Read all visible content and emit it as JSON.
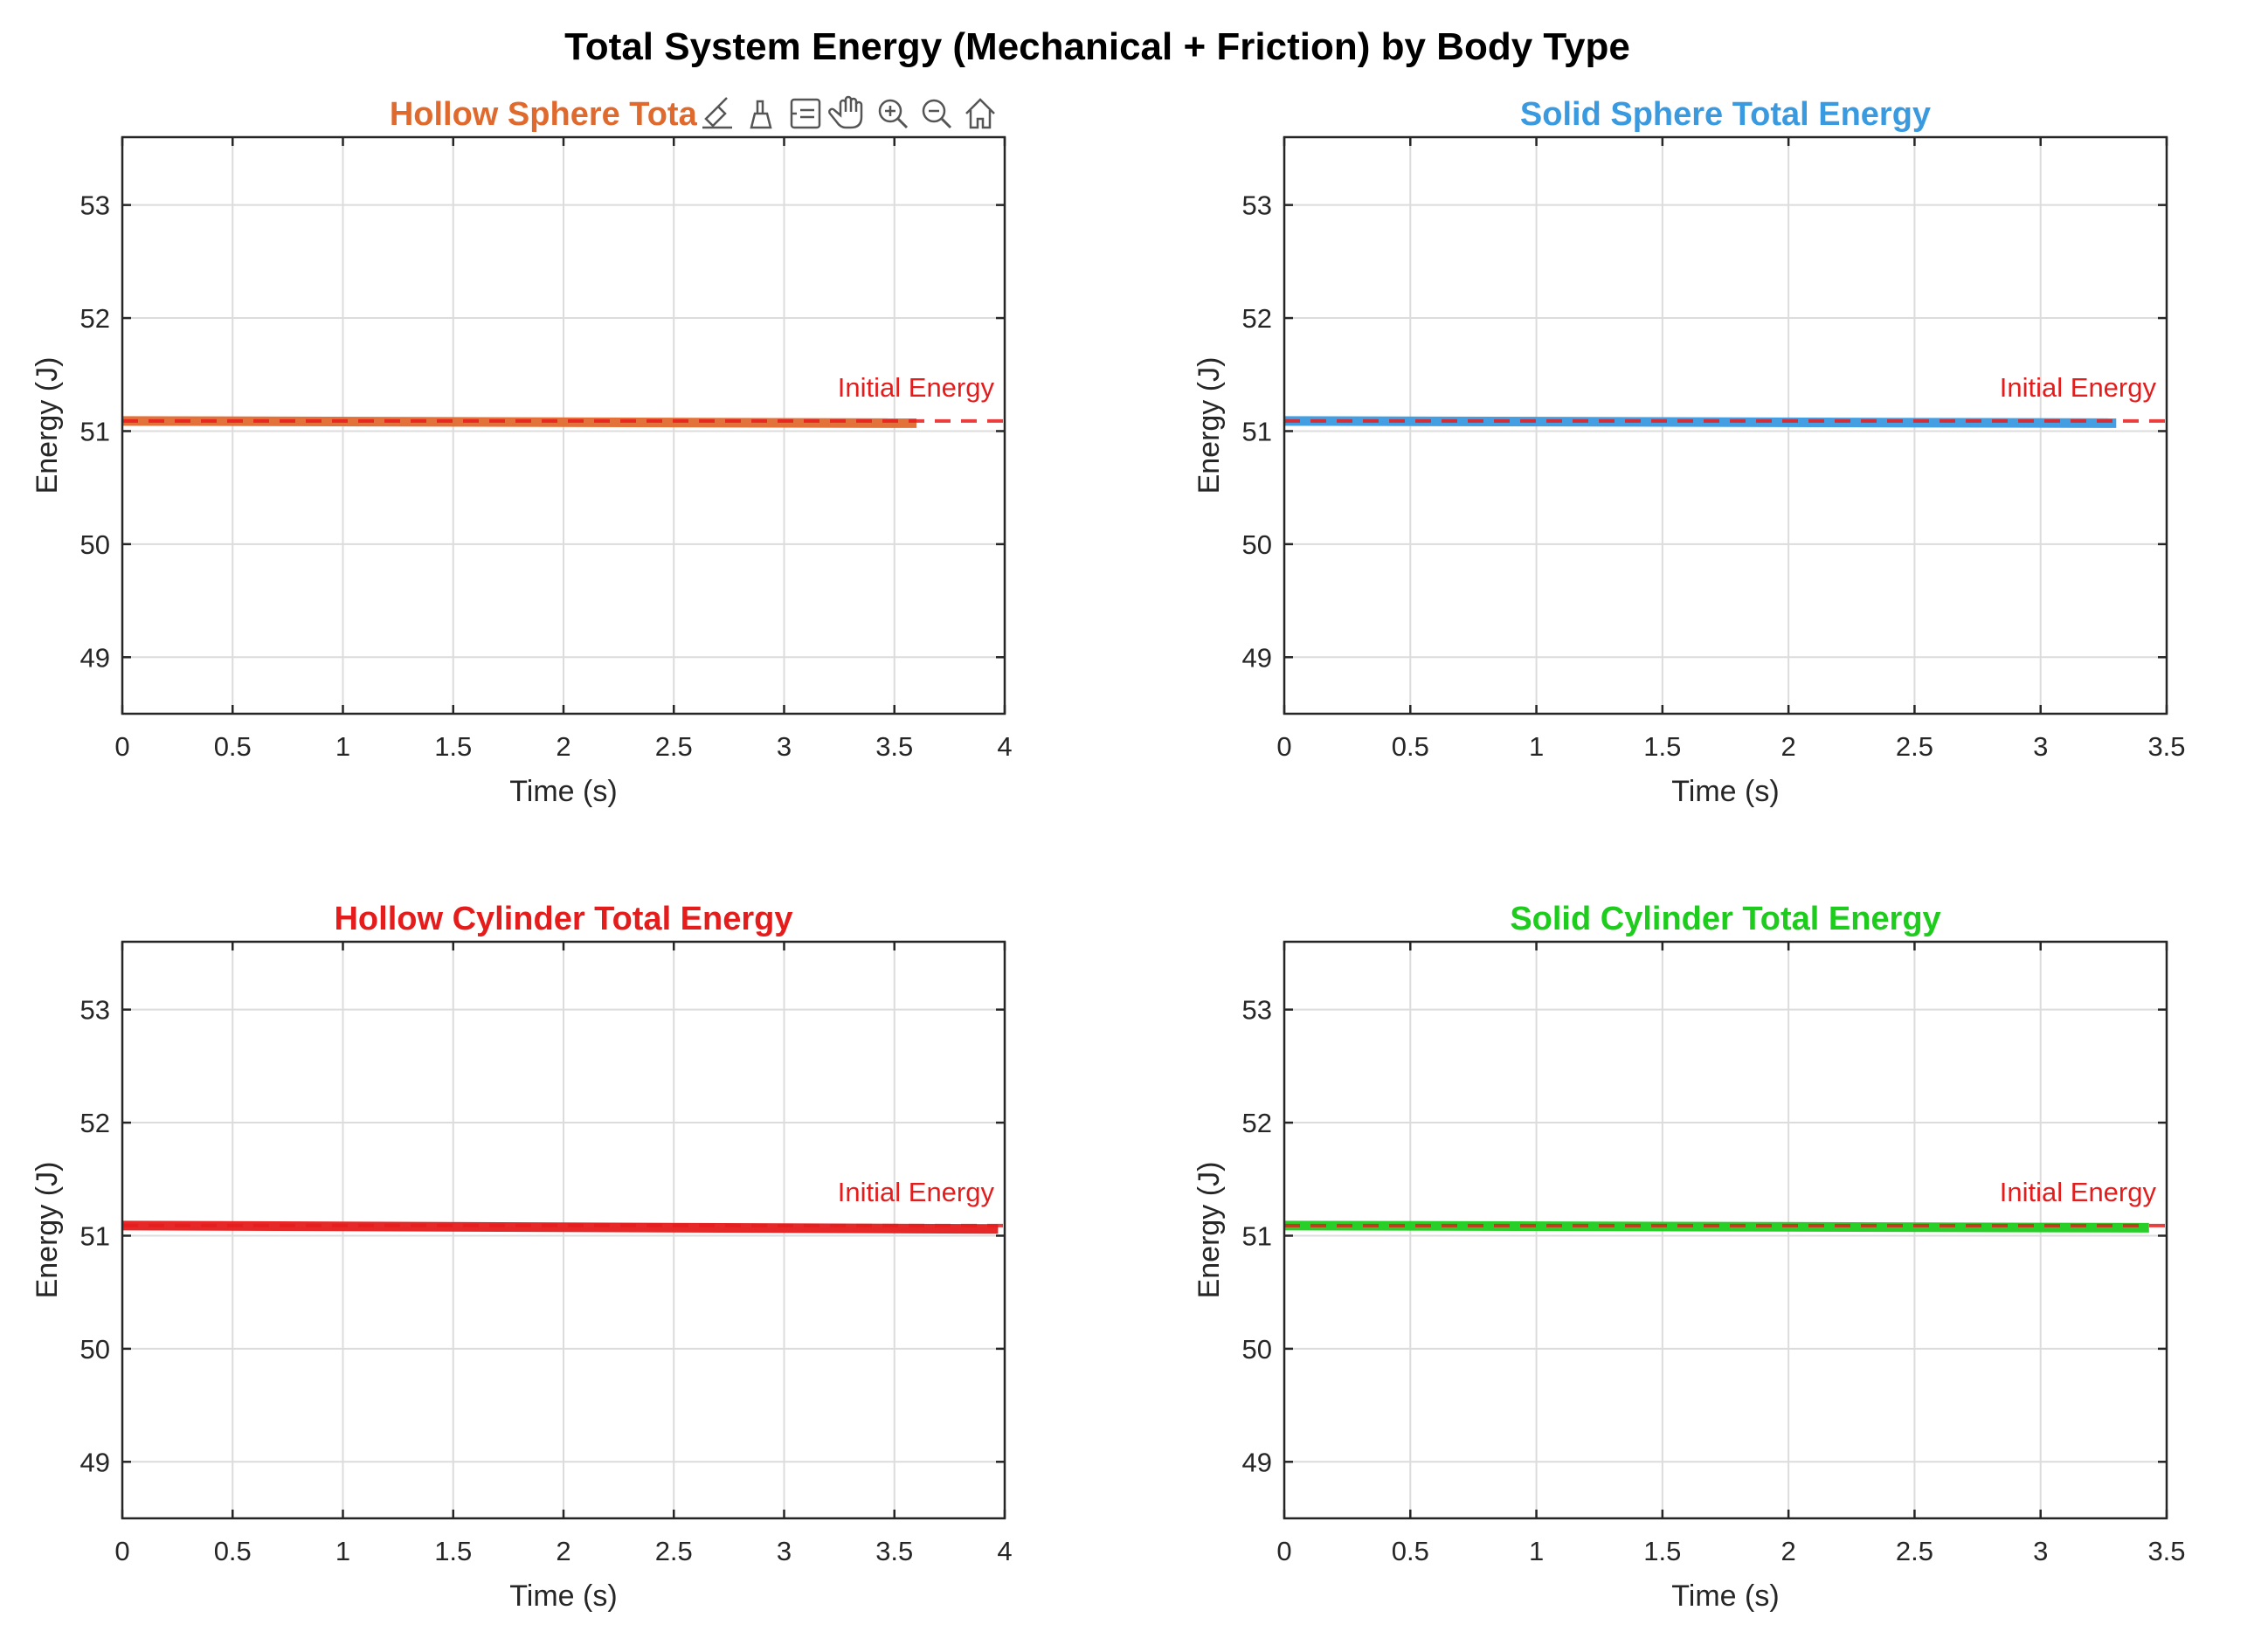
{
  "figure_title": "Total System Energy (Mechanical + Friction) by Body Type",
  "toolbar": {
    "icons": [
      "brush-icon",
      "data-tips-icon",
      "legend-icon",
      "pan-hand-icon",
      "zoom-in-icon",
      "zoom-out-icon",
      "home-icon"
    ]
  },
  "colors": {
    "hollow_sphere": "#e06a2e",
    "solid_sphere": "#3a9ae0",
    "hollow_cylinder": "#e51c1c",
    "solid_cylinder": "#1ecc1e",
    "reference": "#e51c1c"
  },
  "chart_data": [
    {
      "type": "line",
      "title": "Hollow Sphere Total E",
      "title_color": "#e06a2e",
      "xlabel": "Time (s)",
      "ylabel": "Energy (J)",
      "xlim": [
        0,
        4
      ],
      "ylim": [
        48.5,
        53.6
      ],
      "xticks": [
        0,
        0.5,
        1,
        1.5,
        2,
        2.5,
        3,
        3.5,
        4
      ],
      "xtick_labels": [
        "0",
        "0.5",
        "1",
        "1.5",
        "2",
        "2.5",
        "3",
        "3.5",
        "4"
      ],
      "yticks": [
        49,
        50,
        51,
        52,
        53
      ],
      "ytick_labels": [
        "49",
        "50",
        "51",
        "52",
        "53"
      ],
      "grid": true,
      "series": [
        {
          "color": "#e06a2e",
          "x": [
            0,
            3.6
          ],
          "y": [
            51.09,
            51.07
          ]
        }
      ],
      "reference_line": {
        "y": 51.09,
        "color": "#e51c1c",
        "style": "dashed",
        "x_range": [
          0,
          4
        ]
      },
      "annotation": {
        "text": "Initial Energy",
        "color": "#e51c1c"
      }
    },
    {
      "type": "line",
      "title": "Solid Sphere Total Energy",
      "title_color": "#3a9ae0",
      "xlabel": "Time (s)",
      "ylabel": "Energy (J)",
      "xlim": [
        0,
        3.5
      ],
      "ylim": [
        48.5,
        53.6
      ],
      "xticks": [
        0,
        0.5,
        1,
        1.5,
        2,
        2.5,
        3,
        3.5
      ],
      "xtick_labels": [
        "0",
        "0.5",
        "1",
        "1.5",
        "2",
        "2.5",
        "3",
        "3.5"
      ],
      "yticks": [
        49,
        50,
        51,
        52,
        53
      ],
      "ytick_labels": [
        "49",
        "50",
        "51",
        "52",
        "53"
      ],
      "grid": true,
      "series": [
        {
          "color": "#3a9ae0",
          "x": [
            0,
            3.3
          ],
          "y": [
            51.09,
            51.07
          ]
        }
      ],
      "reference_line": {
        "y": 51.09,
        "color": "#e51c1c",
        "style": "dashed",
        "x_range": [
          0,
          3.5
        ]
      },
      "annotation": {
        "text": "Initial Energy",
        "color": "#e51c1c"
      }
    },
    {
      "type": "line",
      "title": "Hollow Cylinder Total Energy",
      "title_color": "#e51c1c",
      "xlabel": "Time (s)",
      "ylabel": "Energy (J)",
      "xlim": [
        0,
        4
      ],
      "ylim": [
        48.5,
        53.6
      ],
      "xticks": [
        0,
        0.5,
        1,
        1.5,
        2,
        2.5,
        3,
        3.5,
        4
      ],
      "xtick_labels": [
        "0",
        "0.5",
        "1",
        "1.5",
        "2",
        "2.5",
        "3",
        "3.5",
        "4"
      ],
      "yticks": [
        49,
        50,
        51,
        52,
        53
      ],
      "ytick_labels": [
        "49",
        "50",
        "51",
        "52",
        "53"
      ],
      "grid": true,
      "series": [
        {
          "color": "#e51c1c",
          "x": [
            0,
            3.97
          ],
          "y": [
            51.09,
            51.06
          ]
        }
      ],
      "reference_line": {
        "y": 51.09,
        "color": "#e51c1c",
        "style": "dashed",
        "x_range": [
          0,
          4
        ]
      },
      "annotation": {
        "text": "Initial Energy",
        "color": "#e51c1c"
      }
    },
    {
      "type": "line",
      "title": "Solid Cylinder Total Energy",
      "title_color": "#1ecc1e",
      "xlabel": "Time (s)",
      "ylabel": "Energy (J)",
      "xlim": [
        0,
        3.5
      ],
      "ylim": [
        48.5,
        53.6
      ],
      "xticks": [
        0,
        0.5,
        1,
        1.5,
        2,
        2.5,
        3,
        3.5
      ],
      "xtick_labels": [
        "0",
        "0.5",
        "1",
        "1.5",
        "2",
        "2.5",
        "3",
        "3.5"
      ],
      "yticks": [
        49,
        50,
        51,
        52,
        53
      ],
      "ytick_labels": [
        "49",
        "50",
        "51",
        "52",
        "53"
      ],
      "grid": true,
      "series": [
        {
          "color": "#1ecc1e",
          "x": [
            0,
            3.43
          ],
          "y": [
            51.09,
            51.07
          ]
        }
      ],
      "reference_line": {
        "y": 51.09,
        "color": "#e51c1c",
        "style": "dashed",
        "x_range": [
          0,
          3.5
        ]
      },
      "annotation": {
        "text": "Initial Energy",
        "color": "#e51c1c"
      }
    }
  ]
}
